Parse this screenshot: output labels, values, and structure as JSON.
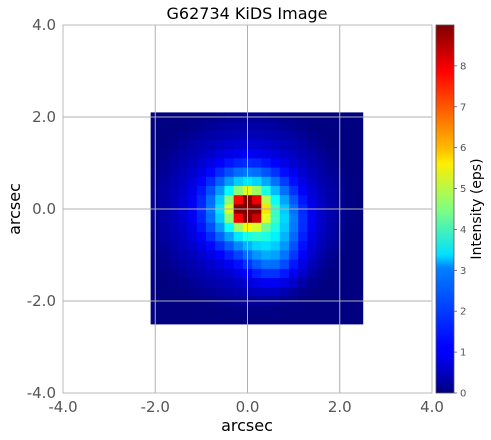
{
  "chart_data": {
    "type": "heatmap",
    "title": "G62734 KiDS Image",
    "xlabel": "arcsec",
    "ylabel": "arcsec",
    "xlim": [
      -4.0,
      4.0
    ],
    "ylim": [
      -4.0,
      4.0
    ],
    "xticks": [
      "-4.0",
      "-2.0",
      "0.0",
      "2.0",
      "4.0"
    ],
    "yticks": [
      "-4.0",
      "-2.0",
      "0.0",
      "2.0",
      "4.0"
    ],
    "grid": true,
    "colormap": "jet",
    "image_extent": {
      "x": [
        -2.1,
        2.5
      ],
      "y": [
        -2.5,
        2.1
      ]
    },
    "grid_size": [
      23,
      23
    ],
    "source_center": [
      0.0,
      0.0
    ],
    "peak_intensity": 8.6,
    "colorbar": {
      "label": "Intensity (eps)",
      "range": [
        0,
        9
      ],
      "ticks": [
        "0",
        "1",
        "2",
        "3",
        "4",
        "5",
        "6",
        "7",
        "8"
      ]
    }
  }
}
